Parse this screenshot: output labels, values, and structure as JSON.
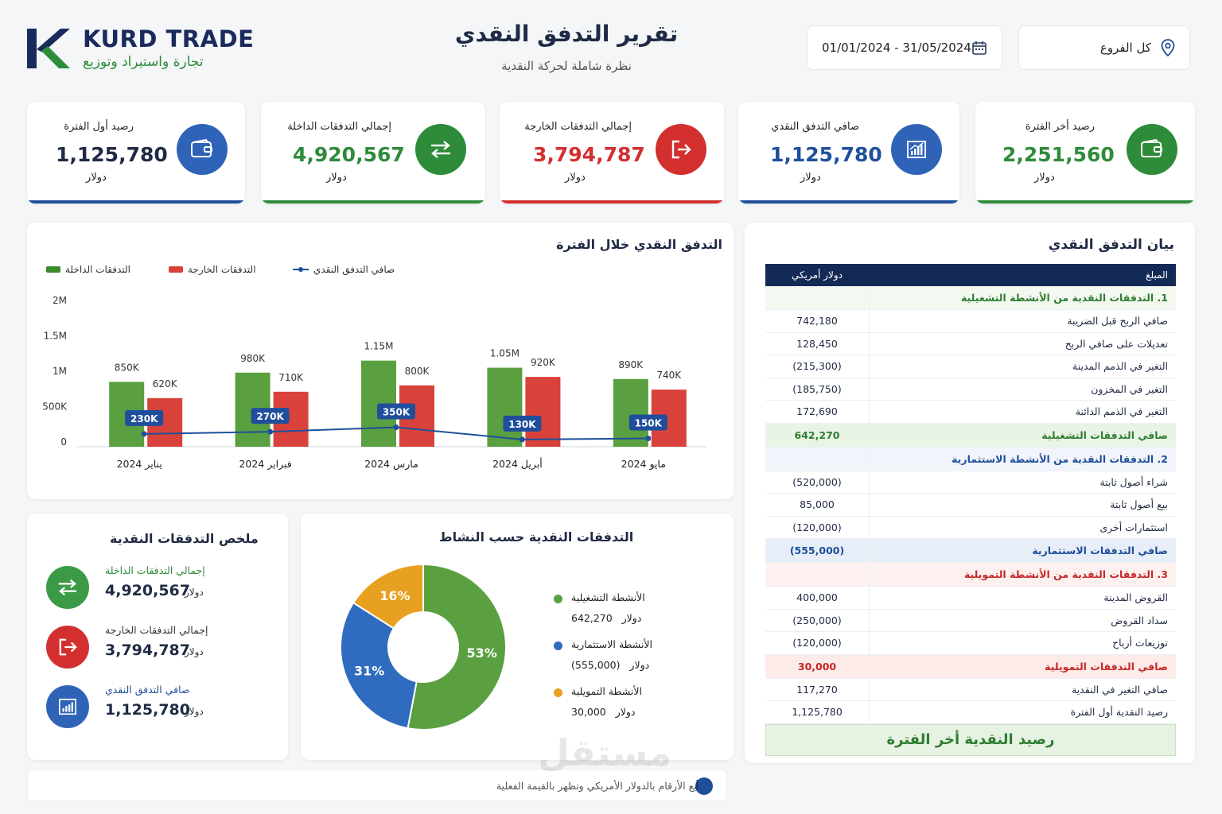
{
  "brand": {
    "name": "KURD TRADE",
    "tagline": "تجارة واستيراد وتوزيع",
    "logo_icon": "k-logo-icon"
  },
  "header": {
    "title": "تقرير التدفق النقدي",
    "subtitle": "نظرة شاملة لحركة النقدية"
  },
  "filters": {
    "date_range": "01/01/2024 - 31/05/2024",
    "date_icon": "calendar-icon",
    "branch": "كل الفروع",
    "branch_icon": "location-pin-icon"
  },
  "kpis": [
    {
      "label": "رصيد أول الفترة",
      "value": "1,125,780",
      "currency": "دولار",
      "color": "#1f4f9c",
      "icon": "wallet-icon"
    },
    {
      "label": "إجمالي التدفقات الداخلة",
      "value": "4,920,567",
      "currency": "دولار",
      "color": "#2e8b3a",
      "icon": "exchange-arrows-icon"
    },
    {
      "label": "إجمالي التدفقات الخارجة",
      "value": "3,794,787",
      "currency": "دولار",
      "color": "#d32f2f",
      "icon": "logout-arrow-icon"
    },
    {
      "label": "صافي التدفق النقدي",
      "value": "1,125,780",
      "currency": "دولار",
      "color": "#1f4f9c",
      "icon": "bar-chart-icon"
    },
    {
      "label": "رصيد أخر الفترة",
      "value": "2,251,560",
      "currency": "دولار",
      "color": "#2e8b3a",
      "icon": "wallet-icon"
    }
  ],
  "flow_chart": {
    "title": "التدفق النقدي خلال الفترة",
    "legend": {
      "inflow": "التدفقات الداخلة",
      "outflow": "التدفقات الخارجة",
      "net": "صافي التدفق النقدي"
    }
  },
  "chart_data": [
    {
      "type": "bar",
      "title": "التدفق النقدي خلال الفترة",
      "categories": [
        "يناير 2024",
        "فبراير 2024",
        "مارس 2024",
        "أبريل 2024",
        "مايو 2024"
      ],
      "series": [
        {
          "name": "التدفقات الداخلة",
          "values": [
            850000,
            980000,
            1150000,
            1050000,
            890000
          ],
          "labels": [
            "850K",
            "980K",
            "1.15M",
            "1.05M",
            "890K"
          ],
          "color": "#5aa040"
        },
        {
          "name": "التدفقات الخارجة",
          "values": [
            620000,
            710000,
            800000,
            920000,
            740000
          ],
          "labels": [
            "620K",
            "710K",
            "800K",
            "920K",
            "740K"
          ],
          "color": "#d9423a"
        },
        {
          "name": "صافي التدفق النقدي",
          "kind": "line",
          "values": [
            230000,
            270000,
            350000,
            130000,
            150000
          ],
          "labels": [
            "230K",
            "270K",
            "350K",
            "130K",
            "150K"
          ],
          "color": "#1f4f9c"
        }
      ],
      "ylim": [
        0,
        2000000
      ],
      "yticks": [
        "0",
        "500K",
        "1M",
        "1.5M",
        "2M"
      ],
      "legend": "top"
    },
    {
      "type": "pie",
      "title": "التدفقات النقدية حسب النشاط",
      "slices": [
        {
          "name": "الأنشطة التشغيلية",
          "value": 53,
          "label": "53%",
          "color": "#5aa040"
        },
        {
          "name": "الأنشطة الاستثمارية",
          "value": 31,
          "label": "31%",
          "color": "#2f6cbf"
        },
        {
          "name": "الأنشطة التمويلية",
          "value": 16,
          "label": "16%",
          "color": "#e8a020"
        }
      ]
    }
  ],
  "summary": {
    "title": "ملخص التدفقات النقدية",
    "items": [
      {
        "label": "إجمالي التدفقات الداخلة",
        "value": "4,920,567",
        "currency": "دولار",
        "color": "#2e8b3a",
        "icon": "exchange-arrows-icon"
      },
      {
        "label": "إجمالي التدفقات الخارجة",
        "value": "3,794,787",
        "currency": "دولار",
        "color": "#d32f2f",
        "icon": "logout-arrow-icon"
      },
      {
        "label": "صافي التدفق النقدي",
        "value": "1,125,780",
        "currency": "دولار",
        "color": "#1f4f9c",
        "icon": "bar-chart-icon"
      }
    ]
  },
  "activities": {
    "title": "التدفقات النقدية حسب النشاط",
    "items": [
      {
        "name": "الأنشطة التشغيلية",
        "value": "642,270",
        "currency": "دولار",
        "color": "#5aa040"
      },
      {
        "name": "الأنشطة الاستثمارية",
        "value": "(555,000)",
        "currency": "دولار",
        "color": "#2f6cbf"
      },
      {
        "name": "الأنشطة التمويلية",
        "value": "30,000",
        "currency": "دولار",
        "color": "#e8a020"
      }
    ]
  },
  "statement": {
    "title": "بيان التدفق النقدي",
    "head_item": "المبلغ",
    "head_amount": "دولار أمريكي",
    "rows": [
      {
        "label": "1. التدفقات النقدية من الأنشطة التشغيلية",
        "value": "",
        "kind": "sec-green"
      },
      {
        "label": "صافي الربح قبل الضريبة",
        "value": "742,180",
        "kind": ""
      },
      {
        "label": "تعديلات على صافي الربح",
        "value": "128,450",
        "kind": ""
      },
      {
        "label": "التغير في الذمم المدينة",
        "value": "(215,300)",
        "kind": ""
      },
      {
        "label": "التغير في المخزون",
        "value": "(185,750)",
        "kind": ""
      },
      {
        "label": "التغير في الذمم الدائنة",
        "value": "172,690",
        "kind": ""
      },
      {
        "label": "صافي التدفقات التشغيلية",
        "value": "642,270",
        "kind": "tot-green"
      },
      {
        "label": "2. التدفقات النقدية من الأنشطة الاستثمارية",
        "value": "",
        "kind": "sec-blue"
      },
      {
        "label": "شراء أصول ثابتة",
        "value": "(520,000)",
        "kind": ""
      },
      {
        "label": "بيع أصول ثابتة",
        "value": "85,000",
        "kind": ""
      },
      {
        "label": "استثمارات أخرى",
        "value": "(120,000)",
        "kind": ""
      },
      {
        "label": "صافي التدفقات الاستثمارية",
        "value": "(555,000)",
        "kind": "tot-blue"
      },
      {
        "label": "3. التدفقات النقدية من الأنشطة التمويلية",
        "value": "",
        "kind": "sec-red"
      },
      {
        "label": "القروض المدينة",
        "value": "400,000",
        "kind": ""
      },
      {
        "label": "سداد القروض",
        "value": "(250,000)",
        "kind": ""
      },
      {
        "label": "توزيعات أرباح",
        "value": "(120,000)",
        "kind": ""
      },
      {
        "label": "صافي التدفقات التمويلية",
        "value": "30,000",
        "kind": "tot-red"
      },
      {
        "label": "صافي التغير في النقدية",
        "value": "117,270",
        "kind": ""
      },
      {
        "label": "رصيد النقدية أول الفترة",
        "value": "1,125,780",
        "kind": ""
      }
    ],
    "final_label": "رصيد النقدية أخر الفترة"
  },
  "footnote": {
    "text": "جميع الأرقام بالدولار الأمريكي وتظهر بالقيمة الفعلية",
    "icon": "info-icon",
    "glyph": "i"
  },
  "watermark": "مستقل"
}
